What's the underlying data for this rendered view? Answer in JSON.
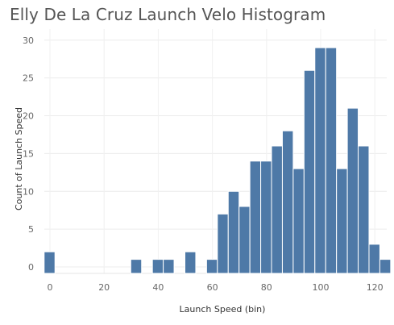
{
  "chart_data": {
    "type": "bar",
    "title": "Elly De La Cruz Launch Velo Histogram",
    "xlabel": "Launch Speed (bin)",
    "ylabel": "Count of Launch Speed",
    "xlim": [
      -2,
      124
    ],
    "ylim": [
      0,
      32
    ],
    "bin_width": 4,
    "x_ticks": [
      0,
      20,
      40,
      60,
      80,
      100,
      120
    ],
    "y_ticks": [
      0,
      5,
      10,
      15,
      20,
      25,
      30
    ],
    "grid": true,
    "bar_color": "#4e79a7",
    "bins": [
      {
        "x": 0,
        "count": 2
      },
      {
        "x": 32,
        "count": 1
      },
      {
        "x": 40,
        "count": 1
      },
      {
        "x": 44,
        "count": 1
      },
      {
        "x": 52,
        "count": 2
      },
      {
        "x": 60,
        "count": 1
      },
      {
        "x": 64,
        "count": 7
      },
      {
        "x": 68,
        "count": 10
      },
      {
        "x": 72,
        "count": 8
      },
      {
        "x": 76,
        "count": 14
      },
      {
        "x": 80,
        "count": 14
      },
      {
        "x": 84,
        "count": 16
      },
      {
        "x": 88,
        "count": 18
      },
      {
        "x": 92,
        "count": 13
      },
      {
        "x": 96,
        "count": 26
      },
      {
        "x": 100,
        "count": 29
      },
      {
        "x": 104,
        "count": 29
      },
      {
        "x": 108,
        "count": 13
      },
      {
        "x": 112,
        "count": 21
      },
      {
        "x": 116,
        "count": 16
      },
      {
        "x": 120,
        "count": 3
      },
      {
        "x": 124,
        "count": 1
      }
    ]
  }
}
